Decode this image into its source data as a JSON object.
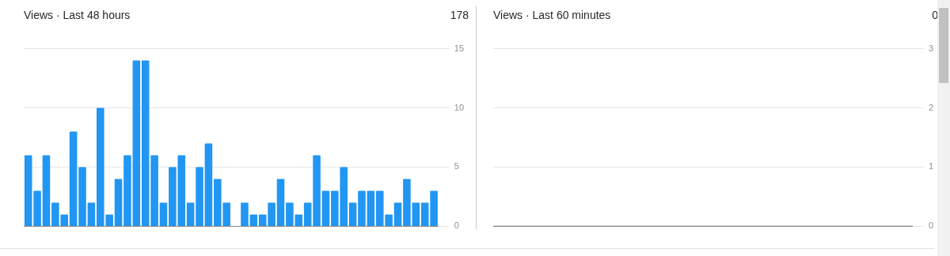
{
  "chart_data": [
    {
      "type": "bar",
      "title": "Views · Last 48 hours",
      "annotations": [
        "178"
      ],
      "categories": [
        null,
        null,
        null,
        null,
        null,
        null,
        null,
        null,
        null,
        null,
        null,
        null,
        null,
        null,
        null,
        null,
        null,
        null,
        null,
        null,
        null,
        null,
        null,
        null,
        null,
        null,
        null,
        null,
        null,
        null,
        null,
        null,
        null,
        null,
        null,
        null,
        null,
        null,
        null,
        null,
        null,
        null,
        null,
        null,
        null,
        null
      ],
      "values": [
        6,
        3,
        6,
        2,
        1,
        8,
        5,
        2,
        10,
        1,
        4,
        6,
        14,
        14,
        6,
        2,
        5,
        6,
        2,
        5,
        7,
        4,
        2,
        0,
        2,
        1,
        1,
        2,
        4,
        2,
        1,
        2,
        6,
        3,
        3,
        5,
        2,
        3,
        3,
        3,
        1,
        2,
        4,
        2,
        2,
        3
      ],
      "color": "#2196f3",
      "ylim": [
        0,
        15
      ],
      "yticks": [
        0,
        5,
        10,
        15
      ],
      "grid": "y",
      "tick_labels": "y"
    },
    {
      "type": "line",
      "title": "Views · Last 60 minutes",
      "annotations": [
        "0"
      ],
      "categories": [
        null,
        null,
        null,
        null,
        null,
        null,
        null,
        null,
        null,
        null,
        null,
        null,
        null,
        null,
        null,
        null,
        null,
        null,
        null,
        null,
        null,
        null,
        null,
        null,
        null,
        null,
        null,
        null,
        null,
        null,
        null,
        null,
        null,
        null,
        null,
        null,
        null,
        null,
        null,
        null,
        null,
        null,
        null,
        null,
        null,
        null,
        null,
        null,
        null,
        null,
        null,
        null,
        null,
        null,
        null,
        null,
        null,
        null,
        null,
        null
      ],
      "values": [
        0,
        0,
        0,
        0,
        0,
        0,
        0,
        0,
        0,
        0,
        0,
        0,
        0,
        0,
        0,
        0,
        0,
        0,
        0,
        0,
        0,
        0,
        0,
        0,
        0,
        0,
        0,
        0,
        0,
        0,
        0,
        0,
        0,
        0,
        0,
        0,
        0,
        0,
        0,
        0,
        0,
        0,
        0,
        0,
        0,
        0,
        0,
        0,
        0,
        0,
        0,
        0,
        0,
        0,
        0,
        0,
        0,
        0,
        0,
        0
      ],
      "color": "#757575",
      "ylim": [
        0,
        3
      ],
      "yticks": [
        0,
        1,
        2,
        3
      ],
      "grid": "y",
      "tick_labels": "y",
      "marker": "none"
    }
  ]
}
